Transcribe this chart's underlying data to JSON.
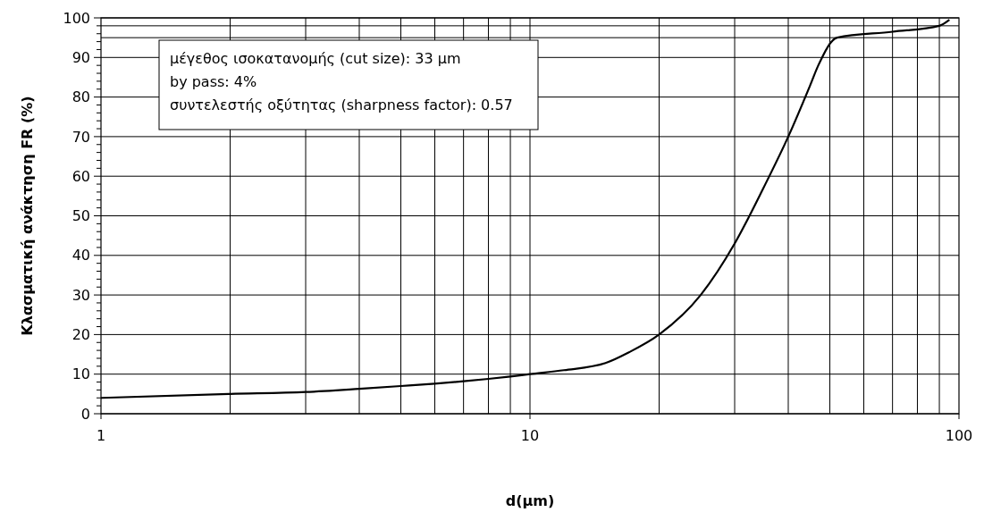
{
  "chart_data": {
    "type": "line",
    "xlabel": "d(μm)",
    "ylabel": "Κλασματική ανάκτηση FR (%)",
    "log": "x",
    "grid": true,
    "marker": "none",
    "line_style": "solid",
    "xlim": [
      1,
      100
    ],
    "xticks": [
      1,
      10,
      100
    ],
    "ylim": [
      0,
      100
    ],
    "yticks": [
      0,
      10,
      20,
      30,
      40,
      50,
      60,
      70,
      80,
      90,
      100
    ],
    "x": [
      1,
      2,
      3,
      4,
      5,
      6,
      7,
      8,
      9,
      10,
      12,
      15,
      17,
      20,
      25,
      30,
      35,
      40,
      45,
      47,
      52,
      70,
      90,
      95
    ],
    "series": [
      {
        "color": "#000000",
        "values": [
          4,
          5,
          5.5,
          6.3,
          7,
          7.6,
          8.2,
          8.8,
          9.4,
          10,
          11,
          12.8,
          15.5,
          20,
          30,
          43,
          57,
          70,
          83,
          88,
          95,
          96.5,
          98,
          99.5
        ]
      }
    ],
    "ref_lines": [
      {
        "axis": "y",
        "value": 95,
        "color": "#000000"
      },
      {
        "axis": "y",
        "value": 98,
        "color": "#000000"
      }
    ],
    "annotations": [
      "μέγεθος ισοκατανομής (cut size): 33 μm",
      "by pass: 4%",
      "συντελεστής οξύτητας (sharpness factor): 0.57"
    ]
  }
}
